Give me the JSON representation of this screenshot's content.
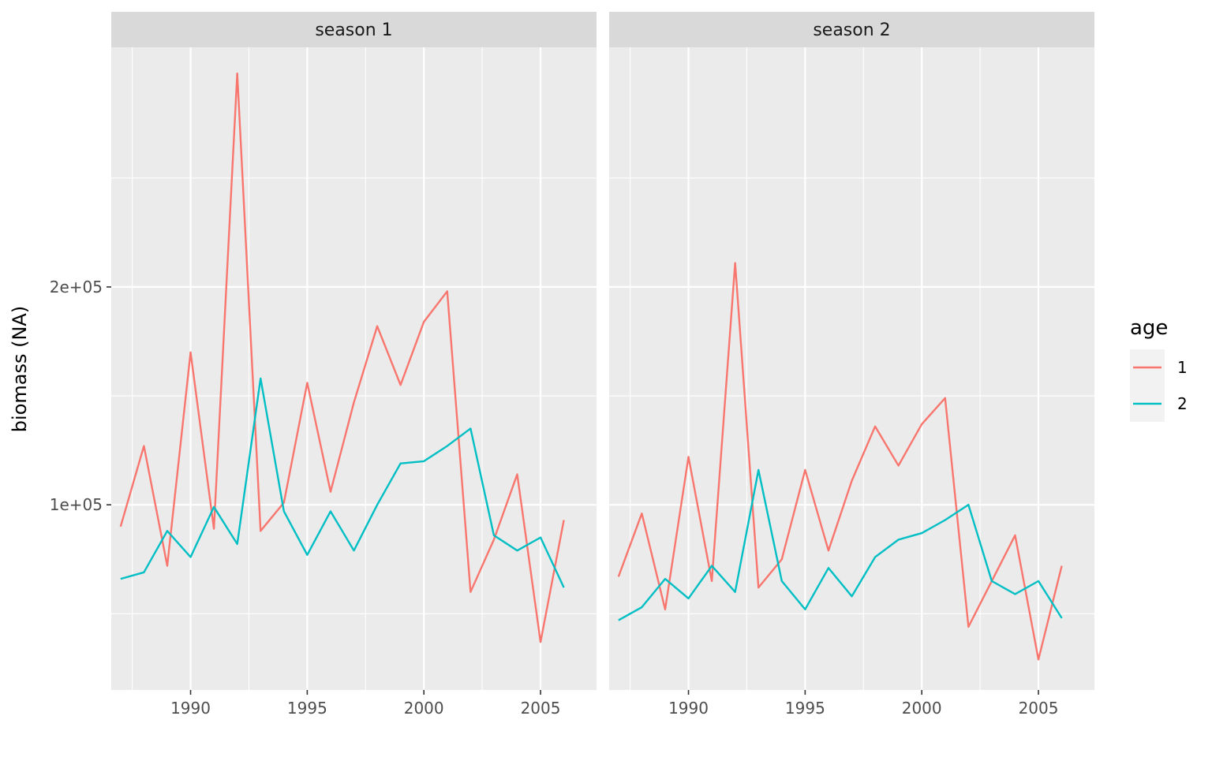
{
  "chart_data": {
    "type": "line",
    "ylabel": "biomass (NA)",
    "xlabel": "",
    "x": [
      1987,
      1988,
      1989,
      1990,
      1991,
      1992,
      1993,
      1994,
      1995,
      1996,
      1997,
      1998,
      1999,
      2000,
      2001,
      2002,
      2003,
      2004,
      2005,
      2006
    ],
    "xlim": [
      1986.6,
      2007.4
    ],
    "ylim": [
      15000,
      310000
    ],
    "x_ticks": [
      1990,
      1995,
      2000,
      2005
    ],
    "x_tick_labels": [
      "1990",
      "1995",
      "2000",
      "2005"
    ],
    "y_ticks": [
      100000,
      200000
    ],
    "y_tick_labels": [
      "1e+05",
      "2e+05"
    ],
    "y_minor_ticks": [
      50000,
      150000,
      250000
    ],
    "grid": true,
    "legend": {
      "title": "age",
      "position": "right",
      "entries": [
        {
          "label": "1",
          "color": "#F8766D"
        },
        {
          "label": "2",
          "color": "#00BFC4"
        }
      ]
    },
    "panels": [
      {
        "strip": "season 1",
        "series": [
          {
            "name": "1",
            "color": "#F8766D",
            "values": [
              90000,
              127000,
              72000,
              170000,
              89000,
              298000,
              88000,
              101000,
              156000,
              106000,
              147000,
              182000,
              155000,
              184000,
              198000,
              60000,
              84000,
              114000,
              37000,
              93000
            ]
          },
          {
            "name": "2",
            "color": "#00BFC4",
            "values": [
              66000,
              69000,
              88000,
              76000,
              99000,
              82000,
              158000,
              97000,
              77000,
              97000,
              79000,
              100000,
              119000,
              120000,
              127000,
              135000,
              86000,
              79000,
              85000,
              62000
            ]
          }
        ]
      },
      {
        "strip": "season 2",
        "series": [
          {
            "name": "1",
            "color": "#F8766D",
            "values": [
              67000,
              96000,
              52000,
              122000,
              65000,
              211000,
              62000,
              75000,
              116000,
              79000,
              111000,
              136000,
              118000,
              137000,
              149000,
              44000,
              65000,
              86000,
              29000,
              72000
            ]
          },
          {
            "name": "2",
            "color": "#00BFC4",
            "values": [
              47000,
              53000,
              66000,
              57000,
              72000,
              60000,
              116000,
              65000,
              52000,
              71000,
              58000,
              76000,
              84000,
              87000,
              93000,
              100000,
              65000,
              59000,
              65000,
              48000
            ]
          }
        ]
      }
    ]
  }
}
